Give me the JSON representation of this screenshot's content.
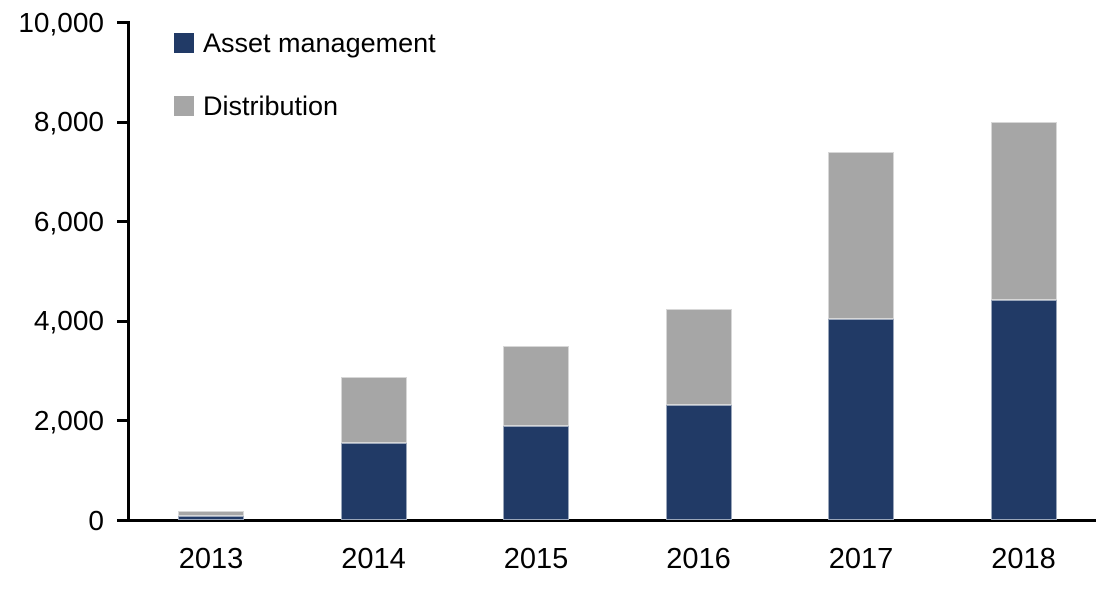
{
  "chart_data": {
    "type": "bar",
    "stacked": true,
    "title": "",
    "categories": [
      "2013",
      "2014",
      "2015",
      "2016",
      "2017",
      "2018"
    ],
    "series": [
      {
        "name": "Asset management",
        "color": "#213A66",
        "values": [
          100,
          1560,
          1900,
          2320,
          4050,
          4430
        ]
      },
      {
        "name": "Distribution",
        "color": "#A6A6A6",
        "values": [
          100,
          1320,
          1600,
          1930,
          3350,
          3570
        ]
      }
    ],
    "xlabel": "",
    "ylabel": "",
    "ylim": [
      0,
      10000
    ],
    "yticks": [
      0,
      2000,
      4000,
      6000,
      8000,
      10000
    ],
    "ytick_labels": [
      "0",
      "2,000",
      "4,000",
      "6,000",
      "8,000",
      "10,000"
    ],
    "grid": false,
    "legend_position": "top-left",
    "axis_color": "#000000",
    "background_color": "#FFFFFF"
  }
}
